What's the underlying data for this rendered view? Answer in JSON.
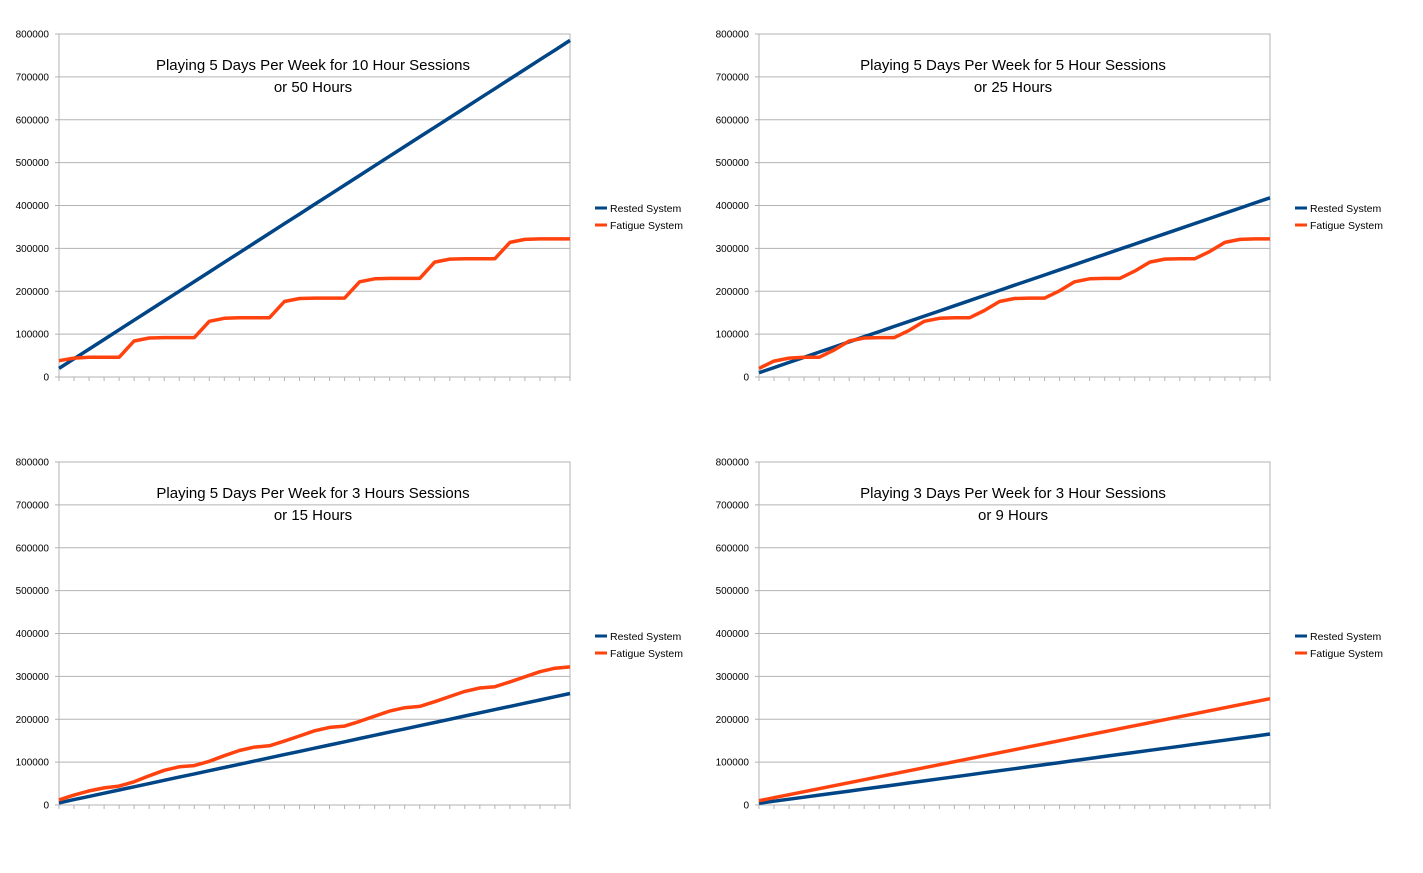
{
  "chart_data": [
    {
      "type": "line",
      "title_line1": "Playing 5 Days Per Week for 10 Hour Sessions",
      "title_line2": "or 50 Hours",
      "ylim": [
        0,
        800000
      ],
      "yticks": [
        "0",
        "100000",
        "200000",
        "300000",
        "400000",
        "500000",
        "600000",
        "700000",
        "800000"
      ],
      "x_count": 35,
      "grid": true,
      "legend_position": "right",
      "series": [
        {
          "name": "Rested System",
          "color": "#004586",
          "values": [
            20000,
            42500,
            65000,
            87500,
            110000,
            132500,
            155000,
            177500,
            200000,
            222500,
            245000,
            267500,
            290000,
            312500,
            335000,
            357500,
            380000,
            402500,
            425000,
            447500,
            470000,
            492500,
            515000,
            537500,
            560000,
            582500,
            605000,
            627500,
            650000,
            672500,
            695000,
            717500,
            740000,
            762500,
            785000
          ]
        },
        {
          "name": "Fatigue System",
          "color": "#ff420e",
          "values": [
            38000,
            44000,
            46000,
            46000,
            46000,
            84000,
            91000,
            92000,
            92000,
            92000,
            130000,
            137000,
            138000,
            138000,
            138000,
            176000,
            183000,
            184000,
            184000,
            184000,
            222000,
            229000,
            230000,
            230000,
            230000,
            268000,
            275000,
            276000,
            276000,
            276000,
            314000,
            321000,
            322000,
            322000,
            322000
          ]
        }
      ]
    },
    {
      "type": "line",
      "title_line1": "Playing 5 Days Per Week for 5 Hour Sessions",
      "title_line2": "or 25 Hours",
      "ylim": [
        0,
        800000
      ],
      "yticks": [
        "0",
        "100000",
        "200000",
        "300000",
        "400000",
        "500000",
        "600000",
        "700000",
        "800000"
      ],
      "x_count": 35,
      "grid": true,
      "legend_position": "right",
      "series": [
        {
          "name": "Rested System",
          "color": "#004586",
          "values": [
            10000,
            22000,
            34000,
            46000,
            58000,
            70000,
            82000,
            94000,
            106000,
            118000,
            130000,
            142000,
            154000,
            166000,
            178000,
            190000,
            202000,
            214000,
            226000,
            238000,
            250000,
            262000,
            274000,
            286000,
            298000,
            310000,
            322000,
            334000,
            346000,
            358000,
            370000,
            382000,
            394000,
            406000,
            418000
          ]
        },
        {
          "name": "Fatigue System",
          "color": "#ff420e",
          "values": [
            20000,
            37000,
            44000,
            46000,
            46000,
            63000,
            84000,
            91000,
            92000,
            92000,
            109000,
            130000,
            137000,
            138000,
            138000,
            155000,
            176000,
            183000,
            184000,
            184000,
            201000,
            222000,
            229000,
            230000,
            230000,
            247000,
            268000,
            275000,
            276000,
            276000,
            293000,
            314000,
            321000,
            322000,
            322000
          ]
        }
      ]
    },
    {
      "type": "line",
      "title_line1": "Playing 5 Days Per Week for 3 Hours Sessions",
      "title_line2": "or 15 Hours",
      "ylim": [
        0,
        800000
      ],
      "yticks": [
        "0",
        "100000",
        "200000",
        "300000",
        "400000",
        "500000",
        "600000",
        "700000",
        "800000"
      ],
      "x_count": 35,
      "grid": true,
      "legend_position": "right",
      "series": [
        {
          "name": "Rested System",
          "color": "#004586",
          "values": [
            5000,
            12500,
            20000,
            27500,
            35000,
            42500,
            50000,
            57500,
            65000,
            72500,
            80000,
            87500,
            95000,
            102500,
            110000,
            117500,
            125000,
            132500,
            140000,
            147500,
            155000,
            162500,
            170000,
            177500,
            185000,
            192500,
            200000,
            207500,
            215000,
            222500,
            230000,
            237500,
            245000,
            252500,
            260000
          ]
        },
        {
          "name": "Fatigue System",
          "color": "#ff420e",
          "values": [
            12000,
            23000,
            33000,
            40000,
            44000,
            54000,
            68000,
            81000,
            89000,
            92000,
            102000,
            115000,
            127000,
            135000,
            138000,
            149000,
            161000,
            173000,
            181000,
            184000,
            195000,
            207000,
            219000,
            227000,
            230000,
            241000,
            253000,
            265000,
            273000,
            276000,
            287000,
            299000,
            311000,
            319000,
            322000
          ]
        }
      ]
    },
    {
      "type": "line",
      "title_line1": "Playing 3 Days Per Week for 3 Hour Sessions",
      "title_line2": "or 9 Hours",
      "ylim": [
        0,
        800000
      ],
      "yticks": [
        "0",
        "100000",
        "200000",
        "300000",
        "400000",
        "500000",
        "600000",
        "700000",
        "800000"
      ],
      "x_count": 35,
      "grid": true,
      "legend_position": "right",
      "series": [
        {
          "name": "Rested System",
          "color": "#004586",
          "values": [
            4000,
            8750,
            13500,
            18250,
            23000,
            27750,
            32500,
            37250,
            42000,
            46750,
            51500,
            56250,
            61000,
            65750,
            70500,
            75250,
            80000,
            84750,
            89500,
            94250,
            99000,
            103750,
            108500,
            113250,
            118000,
            122750,
            127500,
            132250,
            137000,
            141750,
            146500,
            151250,
            156000,
            160750,
            165500
          ]
        },
        {
          "name": "Fatigue System",
          "color": "#ff420e",
          "values": [
            10000,
            17000,
            24000,
            31000,
            38000,
            45000,
            52000,
            59000,
            66000,
            73000,
            80000,
            87000,
            94000,
            101000,
            108000,
            115000,
            122000,
            129000,
            136000,
            143000,
            150000,
            157000,
            164000,
            171000,
            178000,
            185000,
            192000,
            199000,
            206000,
            213000,
            220000,
            227000,
            234000,
            241000,
            248000
          ]
        }
      ]
    }
  ]
}
